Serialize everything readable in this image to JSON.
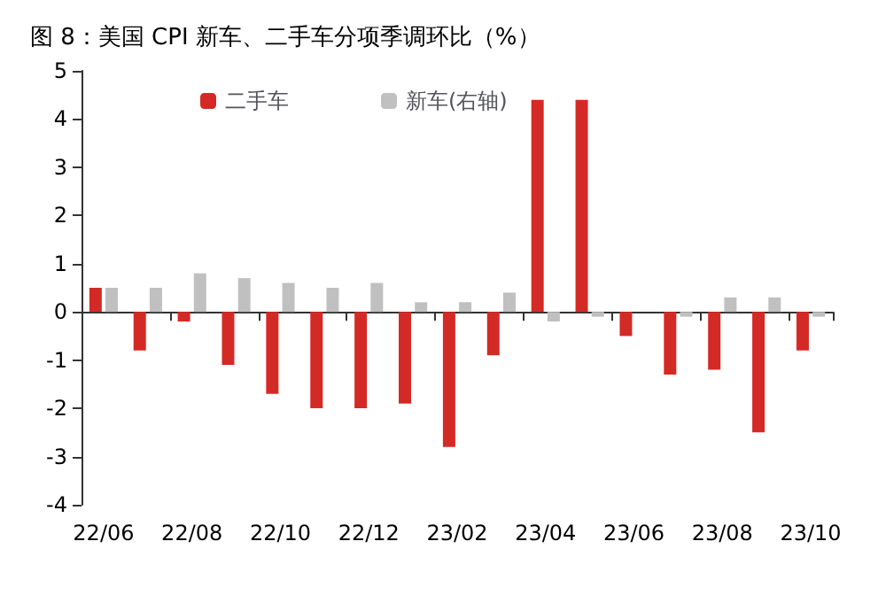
{
  "chart_data": {
    "type": "bar",
    "title": "图 8：美国 CPI 新车、二手车分项季调环比（%）",
    "categories": [
      "22/06",
      null,
      "22/08",
      null,
      "22/10",
      null,
      "22/12",
      null,
      "23/02",
      null,
      "23/04",
      null,
      "23/06",
      null,
      "23/08",
      null,
      "23/10"
    ],
    "series": [
      {
        "name": "二手车",
        "color": "#d42a26",
        "values": [
          0.5,
          -0.8,
          -0.2,
          -1.1,
          -1.7,
          -2.0,
          -2.0,
          -1.9,
          -2.8,
          -0.9,
          4.4,
          4.4,
          -0.5,
          -1.3,
          -1.2,
          -2.5,
          -0.8
        ]
      },
      {
        "name": "新车(右轴)",
        "color": "#c0c0c0",
        "values": [
          0.5,
          0.5,
          0.8,
          0.7,
          0.6,
          0.5,
          0.6,
          0.2,
          0.2,
          0.4,
          -0.2,
          -0.1,
          0,
          -0.1,
          0.3,
          0.3,
          -0.1
        ]
      }
    ],
    "ylim": [
      -4,
      5
    ],
    "yticks": [
      -4,
      -3,
      -2,
      -1,
      0,
      1,
      2,
      3,
      4,
      5
    ],
    "legend": "top"
  }
}
